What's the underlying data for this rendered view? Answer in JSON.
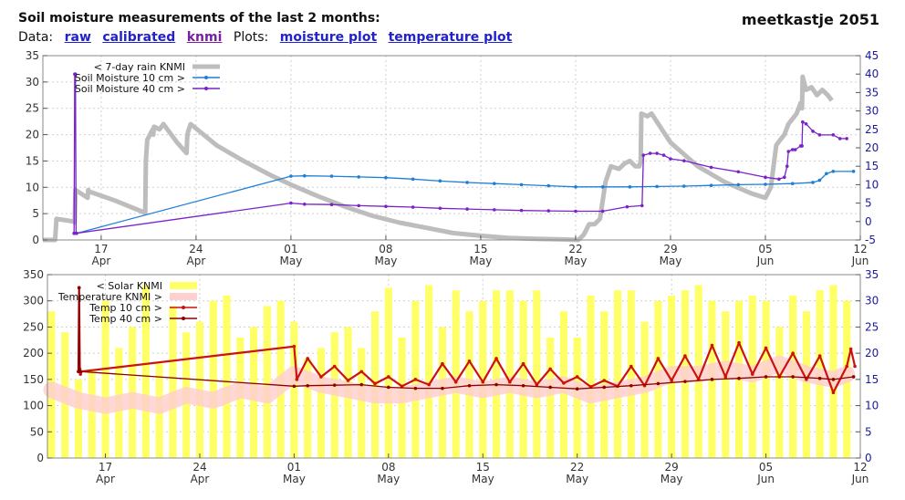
{
  "header": {
    "title": "Soil moisture measurements of the last 2 months:",
    "station": "meetkastje 2051",
    "data_label": "Data:",
    "plots_label": "Plots:",
    "links": {
      "raw": "raw",
      "calibrated": "calibrated",
      "knmi": "knmi",
      "moisture_plot": "moisture plot",
      "temperature_plot": "temperature plot"
    }
  },
  "colors": {
    "rain": "#bdbdbd",
    "moist10": "#1e7fd8",
    "moist40": "#7b22c9",
    "solar": "#ffff66",
    "tempknmi": "#ffd0d0",
    "temp10": "#cc1111",
    "temp40": "#8b0000",
    "right_axis": "#1a1aa0"
  },
  "chart_data": [
    {
      "type": "line",
      "xticks": [
        {
          "x": 17,
          "day": "17",
          "month": "Apr"
        },
        {
          "x": 24,
          "day": "24",
          "month": "Apr"
        },
        {
          "x": 31,
          "day": "01",
          "month": "May"
        },
        {
          "x": 38,
          "day": "08",
          "month": "May"
        },
        {
          "x": 45,
          "day": "15",
          "month": "May"
        },
        {
          "x": 52,
          "day": "22",
          "month": "May"
        },
        {
          "x": 59,
          "day": "29",
          "month": "May"
        },
        {
          "x": 66,
          "day": "05",
          "month": "Jun"
        },
        {
          "x": 73,
          "day": "12",
          "month": "Jun"
        }
      ],
      "xlim": [
        12.7,
        73
      ],
      "ylim_left": [
        0,
        35
      ],
      "yticks_left": [
        "0",
        "5",
        "10",
        "15",
        "20",
        "25",
        "30",
        "35"
      ],
      "ylim_right": [
        -5,
        45
      ],
      "yticks_right": [
        "-5",
        "0",
        "5",
        "10",
        "15",
        "20",
        "25",
        "30",
        "35",
        "40",
        "45"
      ],
      "legend": {
        "position": "top-left",
        "entries": [
          "< 7-day rain KNMI",
          "Soil Moisture 10 cm >",
          "Soil Moisture 40 cm >"
        ]
      },
      "series": [
        {
          "name": "< 7-day rain KNMI",
          "axis": "left",
          "style": "thick",
          "x": [
            12.7,
            13.6,
            13.7,
            15.0,
            15.05,
            15.1,
            16.0,
            16.05,
            16.1,
            18.0,
            20.2,
            20.25,
            20.3,
            20.4,
            20.8,
            20.85,
            20.9,
            21.3,
            21.6,
            22.6,
            23.3,
            23.35,
            23.4,
            23.6,
            25.5,
            27.5,
            29.5,
            31.0,
            33.0,
            35.0,
            37.0,
            39.0,
            41.0,
            43.0,
            45.0,
            47.0,
            49.0,
            51.0,
            52.2,
            52.6,
            53.0,
            53.4,
            53.8,
            54.2,
            54.6,
            55.2,
            55.6,
            56.0,
            56.4,
            56.7,
            56.8,
            56.85,
            57.3,
            57.6,
            59.0,
            61.0,
            63.0,
            65.0,
            66.0,
            66.2,
            66.4,
            66.8,
            67.1,
            67.4,
            67.7,
            68.0,
            68.3,
            68.6,
            68.7,
            68.75,
            69.0,
            69.4,
            69.8,
            70.2,
            70.6,
            70.9
          ],
          "y": [
            0,
            0,
            4,
            3.5,
            3.3,
            9.5,
            8,
            9.5,
            9.2,
            7.5,
            5.2,
            5.2,
            15,
            19,
            21,
            20,
            21.5,
            21,
            22,
            18.5,
            16.5,
            19.5,
            20.5,
            22,
            18,
            15,
            12.3,
            10.5,
            8.3,
            6.3,
            4.6,
            3.3,
            2.3,
            1.3,
            0.8,
            0.4,
            0.2,
            0.1,
            0,
            1,
            3,
            3,
            4,
            11,
            14,
            13.5,
            14.5,
            15,
            14,
            14,
            15,
            24,
            23.5,
            24,
            18.5,
            14,
            11,
            8.8,
            8,
            9,
            10,
            18,
            19,
            20,
            22,
            23,
            24,
            26,
            25,
            31,
            28.5,
            29,
            27.5,
            28.5,
            27.5,
            26.5
          ]
        },
        {
          "name": "Soil Moisture 10 cm >",
          "axis": "right",
          "style": "points",
          "x": [
            15.0,
            15.2,
            31.0,
            32.0,
            34.0,
            36.0,
            38.0,
            40.0,
            42.0,
            44.0,
            46.0,
            48.0,
            50.0,
            52.0,
            54.0,
            56.0,
            58.0,
            60.0,
            62.0,
            64.0,
            66.0,
            68.0,
            69.5,
            70.0,
            70.5,
            71.0,
            72.5
          ],
          "y": [
            -3.2,
            -3.2,
            12.3,
            12.4,
            12.3,
            12.1,
            11.9,
            11.5,
            11.0,
            10.6,
            10.3,
            10.0,
            9.7,
            9.4,
            9.4,
            9.4,
            9.5,
            9.6,
            9.8,
            10.0,
            10.1,
            10.3,
            10.6,
            11.2,
            13.0,
            13.6,
            13.6
          ]
        },
        {
          "name": "Soil Moisture 40 cm >",
          "axis": "right",
          "style": "points",
          "x": [
            15.0,
            15.05,
            15.1,
            15.15,
            31.0,
            32.0,
            34.0,
            36.0,
            38.0,
            40.0,
            42.0,
            44.0,
            46.0,
            48.0,
            50.0,
            52.0,
            54.0,
            55.8,
            56.9,
            57.0,
            57.5,
            58.0,
            58.5,
            59.0,
            60.0,
            62.0,
            64.0,
            66.0,
            67.0,
            67.4,
            67.6,
            67.7,
            68.0,
            68.2,
            68.6,
            68.7,
            68.75,
            69.0,
            69.5,
            70.0,
            71.0,
            71.5,
            72.0
          ],
          "y": [
            -3.2,
            40.0,
            40.0,
            -3.2,
            5.0,
            4.7,
            4.6,
            4.3,
            4.1,
            3.9,
            3.6,
            3.4,
            3.2,
            3.0,
            2.9,
            2.8,
            2.8,
            4.0,
            4.3,
            18.0,
            18.5,
            18.5,
            18.0,
            17.0,
            16.5,
            14.7,
            13.5,
            12.0,
            11.5,
            12.0,
            15.0,
            19.0,
            19.5,
            19.5,
            20.5,
            20.5,
            27.0,
            26.5,
            24.5,
            23.5,
            23.5,
            22.5,
            22.5
          ]
        }
      ]
    },
    {
      "type": "line",
      "xticks": [
        {
          "x": 17,
          "day": "17",
          "month": "Apr"
        },
        {
          "x": 24,
          "day": "24",
          "month": "Apr"
        },
        {
          "x": 31,
          "day": "01",
          "month": "May"
        },
        {
          "x": 38,
          "day": "08",
          "month": "May"
        },
        {
          "x": 45,
          "day": "15",
          "month": "May"
        },
        {
          "x": 52,
          "day": "22",
          "month": "May"
        },
        {
          "x": 59,
          "day": "29",
          "month": "May"
        },
        {
          "x": 66,
          "day": "05",
          "month": "Jun"
        },
        {
          "x": 73,
          "day": "12",
          "month": "Jun"
        }
      ],
      "xlim": [
        12.7,
        73
      ],
      "ylim_left": [
        0,
        350
      ],
      "yticks_left": [
        "0",
        "50",
        "100",
        "150",
        "200",
        "250",
        "300",
        "350"
      ],
      "ylim_right": [
        0,
        35
      ],
      "yticks_right": [
        "0",
        "5",
        "10",
        "15",
        "20",
        "25",
        "30",
        "35"
      ],
      "legend": {
        "position": "top-left",
        "entries": [
          "< Solar KNMI",
          "Temperature KNMI >",
          "Temp 10 cm >",
          "Temp 40 cm >"
        ]
      },
      "series": [
        {
          "name": "< Solar KNMI",
          "axis": "left",
          "style": "bars",
          "x": [
            13,
            14,
            15,
            16,
            17,
            18,
            19,
            20,
            21,
            22,
            23,
            24,
            25,
            26,
            27,
            28,
            29,
            30,
            31,
            32,
            33,
            34,
            35,
            36,
            37,
            38,
            39,
            40,
            41,
            42,
            43,
            44,
            45,
            46,
            47,
            48,
            49,
            50,
            51,
            52,
            53,
            54,
            55,
            56,
            57,
            58,
            59,
            60,
            61,
            62,
            63,
            64,
            65,
            66,
            67,
            68,
            69,
            70,
            71,
            72
          ],
          "y": [
            280,
            240,
            150,
            170,
            300,
            210,
            250,
            330,
            180,
            290,
            240,
            260,
            300,
            310,
            230,
            250,
            290,
            300,
            260,
            190,
            210,
            240,
            250,
            210,
            280,
            325,
            230,
            300,
            330,
            250,
            320,
            280,
            300,
            320,
            320,
            300,
            320,
            230,
            280,
            230,
            310,
            280,
            320,
            320,
            260,
            300,
            310,
            320,
            330,
            300,
            280,
            300,
            310,
            300,
            250,
            310,
            280,
            320,
            330,
            300
          ]
        },
        {
          "name": "Temperature KNMI >",
          "axis": "right",
          "style": "band",
          "x": [
            13,
            15,
            17,
            19,
            21,
            23,
            25,
            27,
            29,
            31,
            33,
            35,
            37,
            39,
            41,
            43,
            45,
            47,
            49,
            51,
            53,
            55,
            57,
            59,
            61,
            63,
            65,
            67,
            69,
            71,
            72
          ],
          "y": [
            13,
            11,
            10,
            11,
            10,
            12,
            11,
            13,
            12,
            16,
            14,
            13,
            12,
            12,
            13,
            14,
            13,
            14,
            13,
            14,
            12,
            13,
            14,
            16,
            16,
            17,
            16,
            18,
            16,
            15,
            16
          ]
        },
        {
          "name": "Temp 10 cm >",
          "axis": "right",
          "style": "line",
          "x": [
            15.0,
            15.05,
            15.1,
            15.15,
            15.2,
            31.0,
            31.2,
            32.0,
            33.0,
            34.0,
            35.0,
            36.0,
            37.0,
            38.0,
            39.0,
            40.0,
            41.0,
            42.0,
            43.0,
            44.0,
            45.0,
            46.0,
            47.0,
            48.0,
            49.0,
            50.0,
            51.0,
            52.0,
            53.0,
            54.0,
            55.0,
            56.0,
            57.0,
            58.0,
            59.0,
            60.0,
            61.0,
            62.0,
            63.0,
            64.0,
            65.0,
            66.0,
            67.0,
            68.0,
            69.0,
            70.0,
            71.0,
            72.0,
            72.3,
            72.6
          ],
          "y": [
            16.5,
            32.5,
            17.0,
            16.0,
            16.5,
            21.3,
            15.0,
            19.0,
            15.5,
            17.5,
            14.8,
            16.5,
            14.2,
            15.5,
            13.7,
            15.0,
            14.0,
            18.0,
            14.5,
            18.5,
            14.5,
            19.0,
            14.5,
            18.0,
            14.0,
            17.0,
            14.3,
            15.5,
            13.6,
            14.8,
            13.7,
            17.5,
            13.8,
            19.0,
            14.8,
            19.5,
            15.0,
            21.5,
            15.5,
            22.0,
            16.0,
            21.0,
            15.5,
            20.0,
            15.0,
            19.5,
            12.5,
            17.5,
            20.8,
            17.5
          ]
        },
        {
          "name": "Temp 40 cm >",
          "axis": "right",
          "style": "points",
          "x": [
            15.0,
            15.05,
            15.1,
            15.15,
            31.0,
            32.0,
            34.0,
            36.0,
            38.0,
            40.0,
            42.0,
            44.0,
            46.0,
            48.0,
            50.0,
            52.0,
            54.0,
            56.0,
            58.0,
            60.0,
            62.0,
            64.0,
            66.0,
            68.0,
            70.0,
            71.0,
            72.5
          ],
          "y": [
            16.5,
            32.5,
            16.5,
            16.5,
            13.7,
            13.8,
            13.9,
            14.0,
            13.5,
            13.3,
            13.3,
            13.8,
            14.0,
            13.8,
            13.5,
            13.2,
            13.5,
            13.8,
            14.2,
            14.6,
            15.0,
            15.2,
            15.5,
            15.5,
            15.2,
            15.0,
            15.5
          ]
        }
      ]
    }
  ]
}
